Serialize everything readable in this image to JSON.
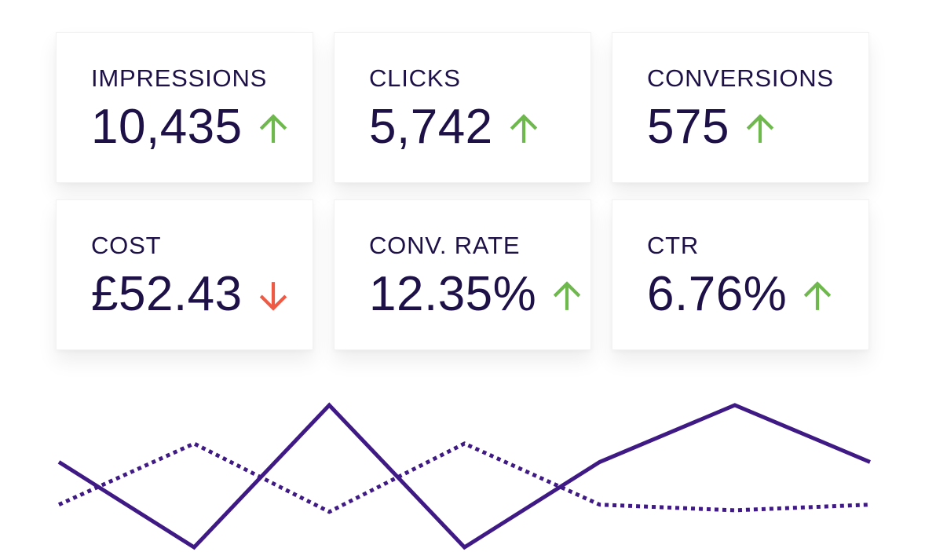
{
  "kpis": [
    {
      "id": "impressions",
      "label": "IMPRESSIONS",
      "value": "10,435",
      "trend": "up"
    },
    {
      "id": "clicks",
      "label": "CLICKS",
      "value": "5,742",
      "trend": "up"
    },
    {
      "id": "conversions",
      "label": "CONVERSIONS",
      "value": "575",
      "trend": "up"
    },
    {
      "id": "cost",
      "label": "COST",
      "value": "£52.43",
      "trend": "down"
    },
    {
      "id": "conv-rate",
      "label": "CONV. RATE",
      "value": "12.35%",
      "trend": "up"
    },
    {
      "id": "ctr",
      "label": "CTR",
      "value": "6.76%",
      "trend": "up"
    }
  ],
  "icons": {
    "up": "arrow-up-icon",
    "down": "arrow-down-icon"
  },
  "colors": {
    "text": "#1d1147",
    "trend_up": "#6fb84e",
    "trend_down": "#ef5a45",
    "line": "#3f1a84"
  },
  "chart_data": {
    "type": "line",
    "x": [
      0,
      1,
      2,
      3,
      4,
      5,
      6
    ],
    "series": [
      {
        "style": "solid",
        "values": [
          0.6,
          0.0,
          1.0,
          0.0,
          0.6,
          1.0,
          0.6
        ]
      },
      {
        "style": "dotted",
        "values": [
          0.3,
          0.73,
          0.25,
          0.73,
          0.3,
          0.26,
          0.3
        ]
      }
    ],
    "ylim": [
      0,
      1
    ],
    "grid": false
  }
}
